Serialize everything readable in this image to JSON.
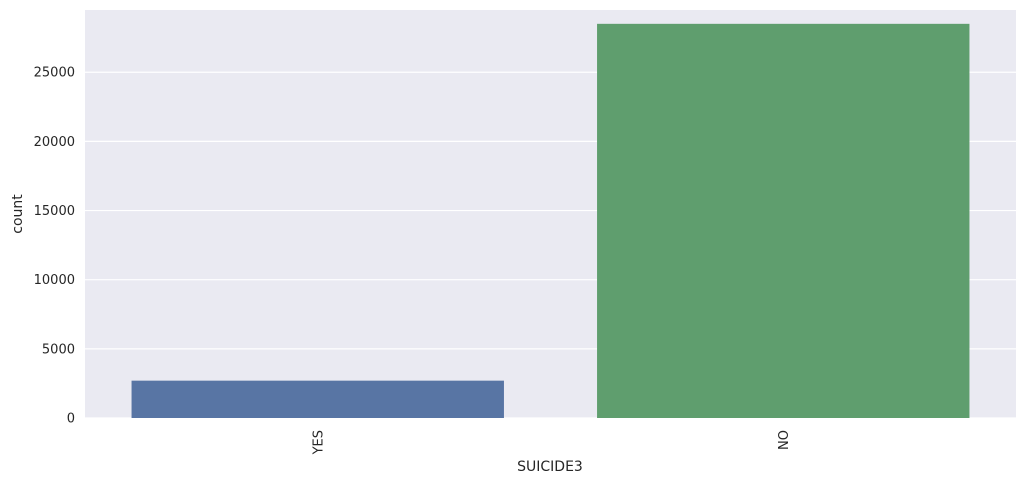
{
  "chart_data": {
    "type": "bar",
    "categories": [
      "YES",
      "NO"
    ],
    "values": [
      2700,
      28500
    ],
    "colors": [
      "#5875a4",
      "#5f9e6e"
    ],
    "xlabel": "SUICIDE3",
    "ylabel": "count",
    "ylim": [
      0,
      29500
    ],
    "yticks": [
      0,
      5000,
      10000,
      15000,
      20000,
      25000
    ],
    "grid": true,
    "background": "#eaeaf2",
    "gridColor": "#ffffff"
  }
}
